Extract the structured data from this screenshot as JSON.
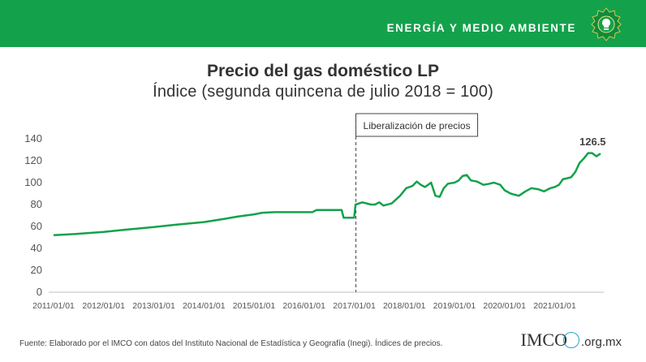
{
  "header": {
    "section_label": "ENERGÍA Y MEDIO AMBIENTE",
    "logo_icon": "lightbulb-emblem-icon"
  },
  "footer": {
    "source": "Fuente: Elaborado por el IMCO con datos del Instituto Nacional de Estadística y Geografía (Inegi). Índices de precios.",
    "brand": "IMCO",
    "brand_domain": ".org.mx"
  },
  "chart_data": {
    "type": "line",
    "title": "Precio del gas doméstico LP",
    "subtitle": "Índice (segunda quincena de julio 2018 = 100)",
    "xlabel": "",
    "ylabel": "",
    "ylim": [
      0,
      140
    ],
    "yticks": [
      0,
      20,
      40,
      60,
      80,
      100,
      120,
      140
    ],
    "xlim": [
      "2011-01-01",
      "2021-12-01"
    ],
    "xtick_labels": [
      "2011/01/01",
      "2012/01/01",
      "2013/01/01",
      "2014/01/01",
      "2015/01/01",
      "2016/01/01",
      "2017/01/01",
      "2018/01/01",
      "2019/01/01",
      "2020/01/01",
      "2021/01/01"
    ],
    "xtick_dates": [
      "2011-01-01",
      "2012-01-01",
      "2013-01-01",
      "2014-01-01",
      "2015-01-01",
      "2016-01-01",
      "2017-01-01",
      "2018-01-01",
      "2019-01-01",
      "2020-01-01",
      "2021-01-01"
    ],
    "grid": false,
    "series": [
      {
        "color": "#13a24b",
        "points": [
          [
            "2011-01-01",
            52
          ],
          [
            "2011-06-01",
            53
          ],
          [
            "2012-01-01",
            55
          ],
          [
            "2012-06-01",
            57
          ],
          [
            "2013-01-01",
            59.5
          ],
          [
            "2013-06-01",
            61.5
          ],
          [
            "2014-01-01",
            64
          ],
          [
            "2014-06-01",
            67
          ],
          [
            "2014-09-01",
            69
          ],
          [
            "2015-01-01",
            71
          ],
          [
            "2015-03-01",
            72.5
          ],
          [
            "2015-06-01",
            73
          ],
          [
            "2015-12-01",
            73
          ],
          [
            "2016-03-01",
            73
          ],
          [
            "2016-04-01",
            75
          ],
          [
            "2016-10-01",
            75
          ],
          [
            "2016-10-15",
            68
          ],
          [
            "2016-12-31",
            68
          ],
          [
            "2017-01-10",
            80
          ],
          [
            "2017-03-01",
            82
          ],
          [
            "2017-04-01",
            81
          ],
          [
            "2017-05-01",
            80
          ],
          [
            "2017-06-01",
            80
          ],
          [
            "2017-07-01",
            82
          ],
          [
            "2017-08-01",
            79
          ],
          [
            "2017-10-01",
            81
          ],
          [
            "2017-12-01",
            88
          ],
          [
            "2018-01-15",
            95
          ],
          [
            "2018-03-01",
            97
          ],
          [
            "2018-04-01",
            101
          ],
          [
            "2018-05-01",
            98
          ],
          [
            "2018-06-01",
            96
          ],
          [
            "2018-07-15",
            100
          ],
          [
            "2018-08-15",
            88
          ],
          [
            "2018-09-15",
            87
          ],
          [
            "2018-10-15",
            95
          ],
          [
            "2018-11-15",
            99
          ],
          [
            "2019-01-01",
            100
          ],
          [
            "2019-02-01",
            102
          ],
          [
            "2019-03-01",
            106
          ],
          [
            "2019-04-01",
            107
          ],
          [
            "2019-05-01",
            102
          ],
          [
            "2019-06-15",
            101
          ],
          [
            "2019-08-01",
            98
          ],
          [
            "2019-09-15",
            99
          ],
          [
            "2019-10-15",
            100
          ],
          [
            "2019-12-01",
            98
          ],
          [
            "2020-01-01",
            93
          ],
          [
            "2020-02-15",
            90
          ],
          [
            "2020-03-15",
            89
          ],
          [
            "2020-04-15",
            88
          ],
          [
            "2020-06-01",
            92
          ],
          [
            "2020-07-15",
            95
          ],
          [
            "2020-09-01",
            94
          ],
          [
            "2020-10-15",
            92
          ],
          [
            "2020-12-01",
            95
          ],
          [
            "2021-01-01",
            96
          ],
          [
            "2021-02-01",
            98
          ],
          [
            "2021-03-01",
            103
          ],
          [
            "2021-04-01",
            104
          ],
          [
            "2021-05-01",
            105
          ],
          [
            "2021-06-01",
            110
          ],
          [
            "2021-07-01",
            118
          ],
          [
            "2021-08-01",
            122
          ],
          [
            "2021-09-01",
            127
          ],
          [
            "2021-10-01",
            127
          ],
          [
            "2021-11-01",
            124
          ],
          [
            "2021-12-01",
            126.5
          ]
        ]
      }
    ],
    "annotations": [
      {
        "text": "Liberalización de precios",
        "x": "2017-01-01",
        "style": "dashed-vertical-line"
      },
      {
        "text": "126.5",
        "x": "2021-12-01",
        "y": 126.5,
        "style": "end-label"
      }
    ]
  }
}
